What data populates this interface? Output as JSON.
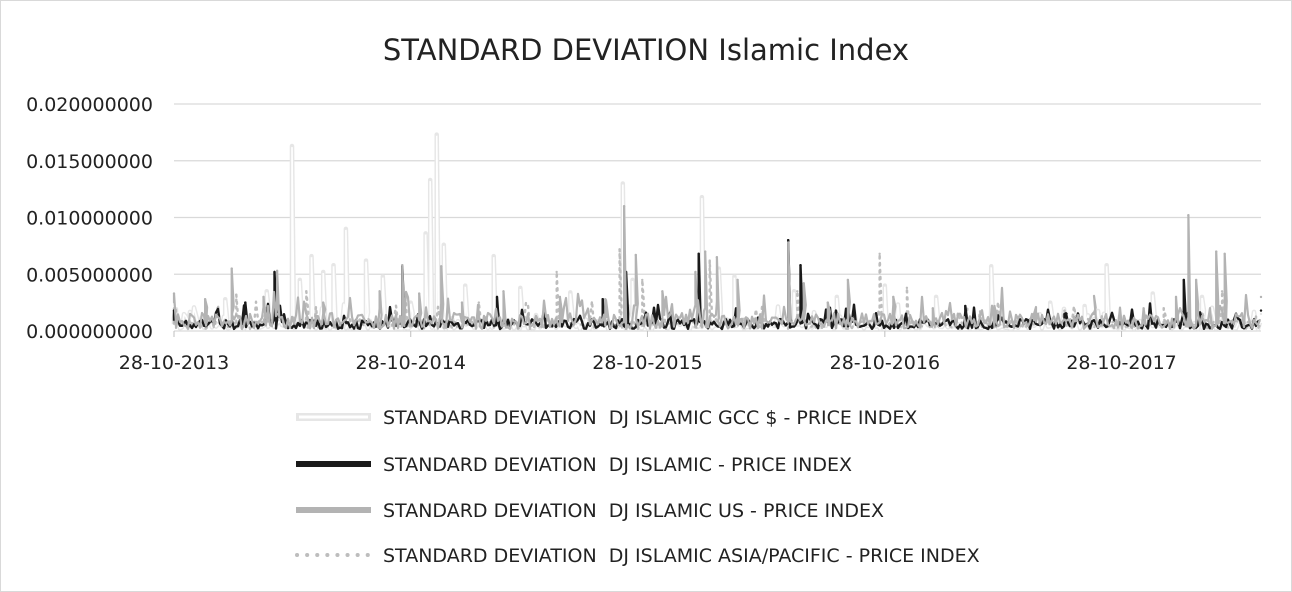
{
  "chart_data": {
    "type": "line",
    "title": "STANDARD DEVIATION Islamic Index",
    "xlabel": "",
    "ylabel": "",
    "x_range": [
      "2013-10-28",
      "2018-05-31"
    ],
    "x_ticks": [
      "28-10-2013",
      "28-10-2014",
      "28-10-2015",
      "28-10-2016",
      "28-10-2017"
    ],
    "y_ticks": [
      "0.000000000",
      "0.005000000",
      "0.010000000",
      "0.015000000",
      "0.020000000"
    ],
    "ylim": [
      0,
      0.02
    ],
    "grid": "horizontal",
    "legend_position": "bottom",
    "series": [
      {
        "name": "STANDARD DEVIATION  DJ ISLAMIC GCC $ - PRICE INDEX",
        "color": "#e6e6e6",
        "style": "double",
        "points": [
          [
            "2013-10-28",
            0.0012
          ],
          [
            "2014-01-15",
            0.0028
          ],
          [
            "2014-03-20",
            0.0035
          ],
          [
            "2014-04-28",
            0.0163
          ],
          [
            "2014-05-10",
            0.0045
          ],
          [
            "2014-05-28",
            0.0066
          ],
          [
            "2014-06-15",
            0.0052
          ],
          [
            "2014-07-01",
            0.0058
          ],
          [
            "2014-07-20",
            0.009
          ],
          [
            "2014-08-20",
            0.0062
          ],
          [
            "2014-09-15",
            0.0048
          ],
          [
            "2014-10-28",
            0.0025
          ],
          [
            "2014-11-20",
            0.0086
          ],
          [
            "2014-11-27",
            0.0133
          ],
          [
            "2014-12-07",
            0.0173
          ],
          [
            "2014-12-18",
            0.0076
          ],
          [
            "2015-01-20",
            0.004
          ],
          [
            "2015-03-05",
            0.0066
          ],
          [
            "2015-04-15",
            0.0038
          ],
          [
            "2015-07-01",
            0.0034
          ],
          [
            "2015-09-20",
            0.013
          ],
          [
            "2015-10-05",
            0.0045
          ],
          [
            "2016-01-20",
            0.0118
          ],
          [
            "2016-02-15",
            0.0055
          ],
          [
            "2016-03-10",
            0.0048
          ],
          [
            "2016-06-10",
            0.0035
          ],
          [
            "2016-08-15",
            0.003
          ],
          [
            "2016-10-28",
            0.004
          ],
          [
            "2017-01-15",
            0.003
          ],
          [
            "2017-04-10",
            0.0057
          ],
          [
            "2017-07-10",
            0.0025
          ],
          [
            "2017-09-01",
            0.0022
          ],
          [
            "2017-10-05",
            0.0058
          ],
          [
            "2017-12-15",
            0.0033
          ],
          [
            "2018-03-01",
            0.003
          ],
          [
            "2018-05-31",
            0.0015
          ]
        ]
      },
      {
        "name": "STANDARD DEVIATION  DJ ISLAMIC - PRICE INDEX",
        "color": "#1a1a1a",
        "style": "solid",
        "points": [
          [
            "2013-10-28",
            0.0018
          ],
          [
            "2014-02-15",
            0.0025
          ],
          [
            "2014-04-01",
            0.0052
          ],
          [
            "2014-10-15",
            0.0057
          ],
          [
            "2015-03-10",
            0.003
          ],
          [
            "2015-08-20",
            0.0028
          ],
          [
            "2015-09-25",
            0.0052
          ],
          [
            "2016-01-15",
            0.0068
          ],
          [
            "2016-06-01",
            0.008
          ],
          [
            "2016-06-20",
            0.0058
          ],
          [
            "2016-09-01",
            0.002
          ],
          [
            "2017-03-01",
            0.0022
          ],
          [
            "2017-08-01",
            0.0015
          ],
          [
            "2018-02-01",
            0.0045
          ],
          [
            "2018-05-31",
            0.0018
          ]
        ]
      },
      {
        "name": "STANDARD DEVIATION  DJ ISLAMIC US - PRICE INDEX",
        "color": "#b3b3b3",
        "style": "thick",
        "points": [
          [
            "2013-10-28",
            0.0033
          ],
          [
            "2013-12-15",
            0.0028
          ],
          [
            "2014-01-25",
            0.0055
          ],
          [
            "2014-03-15",
            0.003
          ],
          [
            "2014-04-05",
            0.0053
          ],
          [
            "2014-06-15",
            0.0025
          ],
          [
            "2014-09-10",
            0.0035
          ],
          [
            "2014-10-15",
            0.0058
          ],
          [
            "2014-11-10",
            0.0033
          ],
          [
            "2014-12-14",
            0.0057
          ],
          [
            "2015-01-15",
            0.0025
          ],
          [
            "2015-03-20",
            0.0035
          ],
          [
            "2015-06-15",
            0.003
          ],
          [
            "2015-08-24",
            0.0028
          ],
          [
            "2015-09-22",
            0.011
          ],
          [
            "2015-10-10",
            0.0067
          ],
          [
            "2015-11-20",
            0.0035
          ],
          [
            "2016-01-10",
            0.0052
          ],
          [
            "2016-01-25",
            0.007
          ],
          [
            "2016-02-12",
            0.0065
          ],
          [
            "2016-03-15",
            0.0045
          ],
          [
            "2016-06-01",
            0.0078
          ],
          [
            "2016-06-25",
            0.0042
          ],
          [
            "2016-08-01",
            0.0025
          ],
          [
            "2016-09-01",
            0.0045
          ],
          [
            "2016-11-10",
            0.003
          ],
          [
            "2017-01-10",
            0.002
          ],
          [
            "2017-04-15",
            0.0022
          ],
          [
            "2017-06-15",
            0.0015
          ],
          [
            "2017-09-15",
            0.0015
          ],
          [
            "2017-12-01",
            0.002
          ],
          [
            "2018-01-20",
            0.003
          ],
          [
            "2018-02-08",
            0.0102
          ],
          [
            "2018-02-20",
            0.0045
          ],
          [
            "2018-03-23",
            0.007
          ],
          [
            "2018-04-05",
            0.0068
          ],
          [
            "2018-05-31",
            0.003
          ]
        ]
      },
      {
        "name": "STANDARD DEVIATION  DJ ISLAMIC ASIA/PACIFIC - PRICE INDEX",
        "color": "#bdbdbd",
        "style": "dotted",
        "points": [
          [
            "2013-10-28",
            0.0012
          ],
          [
            "2014-02-01",
            0.0032
          ],
          [
            "2014-05-20",
            0.0035
          ],
          [
            "2014-10-20",
            0.003
          ],
          [
            "2015-02-10",
            0.0025
          ],
          [
            "2015-06-10",
            0.0052
          ],
          [
            "2015-09-15",
            0.0072
          ],
          [
            "2015-10-20",
            0.0045
          ],
          [
            "2016-02-01",
            0.0062
          ],
          [
            "2016-06-15",
            0.0035
          ],
          [
            "2016-10-20",
            0.0068
          ],
          [
            "2016-12-01",
            0.0038
          ],
          [
            "2017-03-01",
            0.002
          ],
          [
            "2017-08-01",
            0.0018
          ],
          [
            "2018-01-01",
            0.002
          ],
          [
            "2018-04-01",
            0.0035
          ],
          [
            "2018-05-31",
            0.0018
          ]
        ]
      }
    ]
  }
}
